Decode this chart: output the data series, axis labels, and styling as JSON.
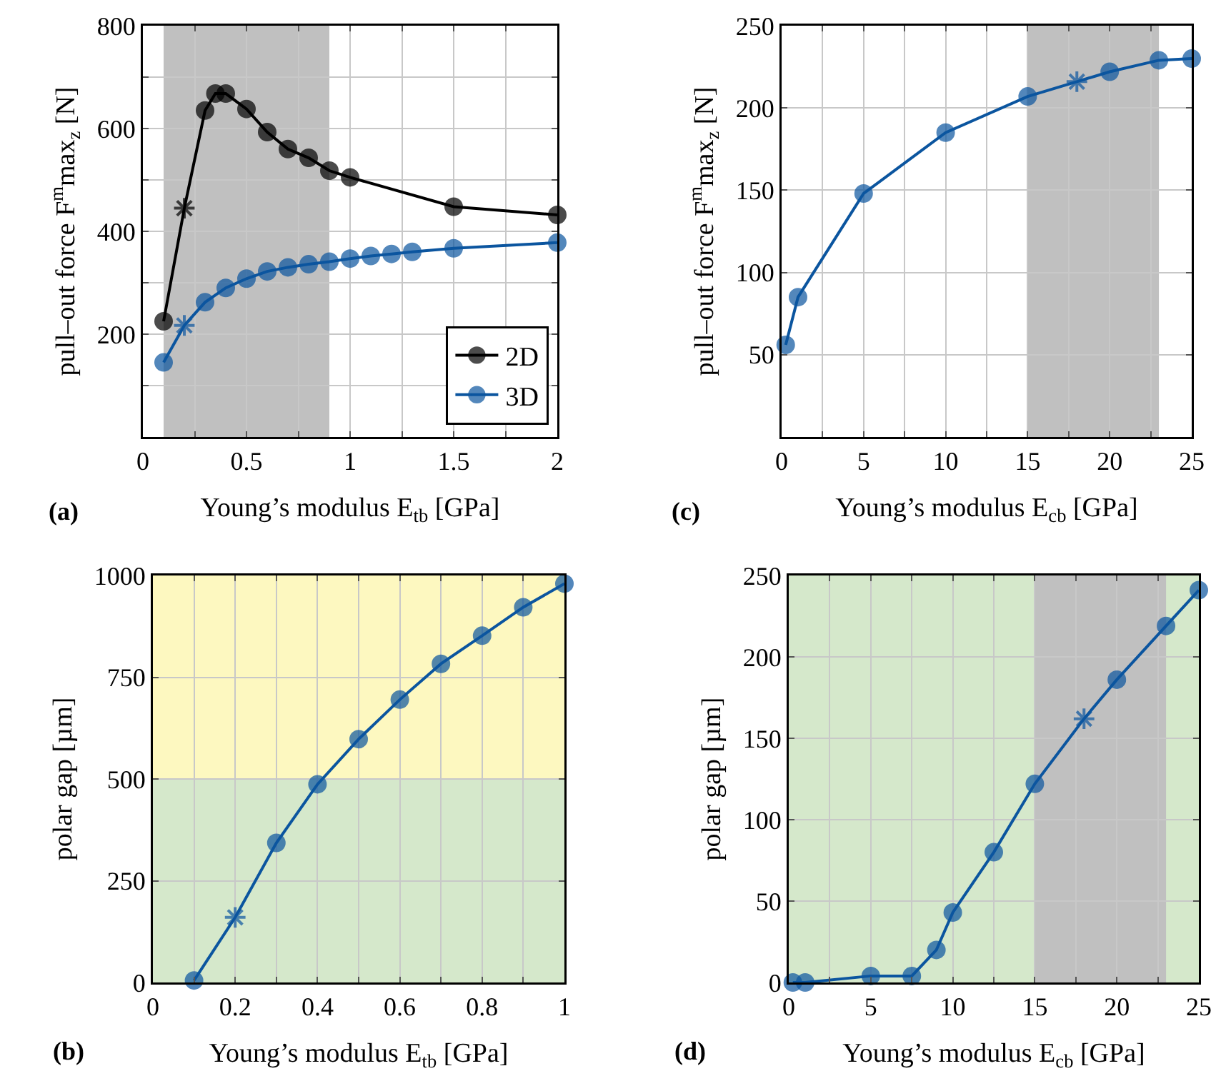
{
  "chart_data": [
    {
      "type": "line",
      "xlabel": "Young’s modulus E$_{tb}$ [GPa]",
      "ylabel": "pull–out force F$^{m}$max$_{z}$ [N]",
      "annotations": [
        "(a)"
      ],
      "xlim": [
        0,
        2
      ],
      "ylim": [
        0,
        800
      ],
      "xticks": [
        0,
        {
          "value": 0.25,
          "label": null
        },
        0.5,
        {
          "value": 0.75,
          "label": null
        },
        1,
        {
          "value": 1.25,
          "label": null
        },
        1.5,
        {
          "value": 1.75,
          "label": null
        },
        2
      ],
      "yticks": [
        {
          "value": 100,
          "label": null
        },
        200,
        {
          "value": 300,
          "label": null
        },
        400,
        {
          "value": 500,
          "label": null
        },
        600,
        {
          "value": 700,
          "label": null
        },
        800
      ],
      "grid": true,
      "legend": "bottom right",
      "marker": "circle",
      "line_style": "solid",
      "bands": [
        {
          "axis": "x",
          "from": 0.1,
          "to": 0.9,
          "color": "#c0c0c0"
        }
      ],
      "series": [
        {
          "name": "2D",
          "color": "#000000",
          "x": [
            0.1,
            0.2,
            0.3,
            0.35,
            0.4,
            0.5,
            0.6,
            0.7,
            0.8,
            0.9,
            1,
            1.5,
            2
          ],
          "values": [
            225,
            445,
            635,
            668,
            668,
            638,
            593,
            560,
            543,
            518,
            505,
            448,
            432
          ]
        },
        {
          "name": "3D",
          "color": "#0b559f",
          "x": [
            0.1,
            0.2,
            0.3,
            0.4,
            0.5,
            0.6,
            0.7,
            0.8,
            0.9,
            1,
            1.1,
            1.2,
            1.3,
            1.5,
            2
          ],
          "values": [
            145,
            217,
            262,
            290,
            308,
            322,
            330,
            336,
            341,
            347,
            352,
            356,
            360,
            367,
            378
          ]
        },
        {
          "type": "scatter",
          "marker": "cross",
          "color": "#000000",
          "x": [
            0.2
          ],
          "values": [
            445
          ]
        },
        {
          "type": "scatter",
          "marker": "cross",
          "color": "#0b559f",
          "x": [
            0.2
          ],
          "values": [
            217
          ]
        }
      ]
    },
    {
      "type": "line",
      "xlabel": "Young’s modulus E$_{cb}$ [GPa]",
      "ylabel": "pull–out force F$^{m}$max$_{z}$ [N]",
      "annotations": [
        "(c)"
      ],
      "xlim": [
        0,
        25
      ],
      "ylim": [
        0,
        250
      ],
      "xticks": [
        0,
        {
          "value": 2.5,
          "label": null
        },
        5,
        {
          "value": 7.5,
          "label": null
        },
        10,
        {
          "value": 12.5,
          "label": null
        },
        15,
        {
          "value": 17.5,
          "label": null
        },
        20,
        {
          "value": 22.5,
          "label": null
        },
        25
      ],
      "yticks": [
        50,
        100,
        150,
        200,
        250
      ],
      "grid": true,
      "marker": "circle",
      "line_style": "solid",
      "bands": [
        {
          "axis": "x",
          "from": 15,
          "to": 23,
          "color": "#c0c0c0"
        }
      ],
      "series": [
        {
          "color": "#0b559f",
          "x": [
            0.25,
            1,
            5,
            10,
            15,
            18,
            20,
            23,
            25
          ],
          "values": [
            56,
            85,
            148,
            185,
            207,
            216,
            222,
            229,
            230
          ]
        },
        {
          "type": "scatter",
          "marker": "cross",
          "color": "#0b559f",
          "x": [
            18
          ],
          "values": [
            216
          ]
        }
      ]
    },
    {
      "type": "line",
      "xlabel": "Young’s modulus E$_{tb}$ [GPa]",
      "ylabel": "polar gap [µm]",
      "annotations": [
        "(b)"
      ],
      "xlim": [
        0,
        1
      ],
      "ylim": [
        0,
        1000
      ],
      "xticks": [
        0,
        {
          "value": 0.1,
          "label": null
        },
        0.2,
        {
          "value": 0.3,
          "label": null
        },
        0.4,
        {
          "value": 0.5,
          "label": null
        },
        0.6,
        {
          "value": 0.7,
          "label": null
        },
        0.8,
        {
          "value": 0.9,
          "label": null
        },
        1
      ],
      "yticks": [
        0,
        250,
        500,
        750,
        1000
      ],
      "grid": true,
      "marker": "circle",
      "line_style": "solid",
      "bands": [
        {
          "axis": "y",
          "from": 0,
          "to": 500,
          "color": "#d5e8cb"
        },
        {
          "axis": "y",
          "from": 500,
          "to": 1000,
          "color": "#fdf8c0"
        }
      ],
      "series": [
        {
          "color": "#0b559f",
          "x": [
            0.1,
            0.2,
            0.3,
            0.4,
            0.5,
            0.6,
            0.7,
            0.8,
            0.9,
            1
          ],
          "values": [
            5,
            160,
            343,
            487,
            598,
            695,
            783,
            852,
            922,
            980
          ]
        },
        {
          "type": "scatter",
          "marker": "cross",
          "color": "#0b559f",
          "x": [
            0.2
          ],
          "values": [
            160
          ]
        }
      ]
    },
    {
      "type": "line",
      "xlabel": "Young’s modulus E$_{cb}$ [GPa]",
      "ylabel": "polar gap [µm]",
      "annotations": [
        "(d)"
      ],
      "xlim": [
        0,
        25
      ],
      "ylim": [
        0,
        250
      ],
      "xticks": [
        0,
        {
          "value": 2.5,
          "label": null
        },
        5,
        {
          "value": 7.5,
          "label": null
        },
        10,
        {
          "value": 12.5,
          "label": null
        },
        15,
        {
          "value": 17.5,
          "label": null
        },
        20,
        {
          "value": 22.5,
          "label": null
        },
        25
      ],
      "yticks": [
        0,
        50,
        100,
        150,
        200,
        250
      ],
      "grid": true,
      "marker": "circle",
      "line_style": "solid",
      "bands": [
        {
          "axis": "x",
          "from": 0,
          "to": 25,
          "color": "#d5e8cb"
        },
        {
          "axis": "x",
          "from": 15,
          "to": 23,
          "color": "#c0c0c0"
        }
      ],
      "series": [
        {
          "color": "#0b559f",
          "x": [
            0.25,
            1,
            5,
            7.5,
            9,
            10,
            12.5,
            15,
            18,
            20,
            23,
            25
          ],
          "values": [
            0,
            0,
            4,
            4,
            20,
            43,
            80,
            122,
            162,
            186,
            219,
            241
          ]
        },
        {
          "type": "scatter",
          "marker": "cross",
          "color": "#0b559f",
          "x": [
            18
          ],
          "values": [
            162
          ]
        }
      ]
    }
  ]
}
